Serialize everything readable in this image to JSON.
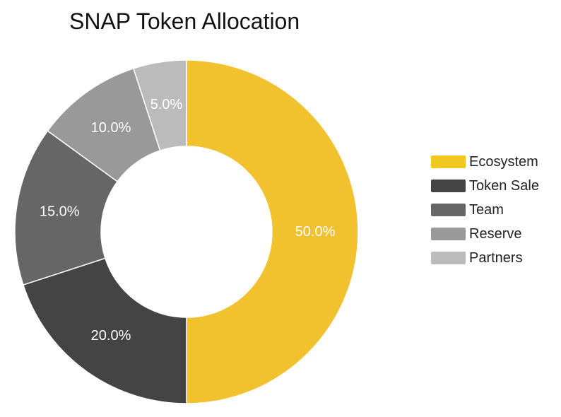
{
  "chart_data": {
    "type": "pie",
    "title": "SNAP Token Allocation",
    "donut": true,
    "legend_position": "right",
    "categories": [
      "Ecosystem",
      "Token Sale",
      "Team",
      "Reserve",
      "Partners"
    ],
    "values": [
      50.0,
      20.0,
      15.0,
      10.0,
      5.0
    ],
    "value_labels": [
      "50.0%",
      "20.0%",
      "15.0%",
      "10.0%",
      "5.0%"
    ],
    "colors": [
      "#F2C12E",
      "#444444",
      "#666666",
      "#999999",
      "#BBBBBB"
    ],
    "legend_colors": [
      "#F2C71F",
      "#444444",
      "#666666",
      "#999999",
      "#BBBBBB"
    ]
  }
}
